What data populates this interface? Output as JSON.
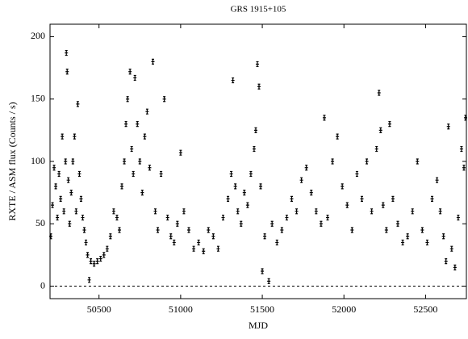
{
  "chart_data": {
    "type": "scatter",
    "title": "GRS 1915+105",
    "x_label": "MJD",
    "y_label": "RXTE / ASM flux   (Counts / s)",
    "xlim": [
      50200,
      52750
    ],
    "xticks": [
      50500,
      51000,
      51500,
      52000,
      52500
    ],
    "ylim": [
      -10,
      210
    ],
    "yticks": [
      0,
      50,
      100,
      150,
      200
    ],
    "color": "#000000",
    "x": [
      50205,
      50215,
      50225,
      50235,
      50245,
      50255,
      50265,
      50275,
      50285,
      50295,
      50300,
      50305,
      50312,
      50320,
      50330,
      50340,
      50350,
      50360,
      50370,
      50380,
      50390,
      50400,
      50410,
      50420,
      50430,
      50440,
      50450,
      50470,
      50490,
      50510,
      50530,
      50550,
      50570,
      50590,
      50610,
      50625,
      50640,
      50655,
      50665,
      50675,
      50690,
      50700,
      50710,
      50720,
      50735,
      50750,
      50765,
      50780,
      50795,
      50810,
      50830,
      50845,
      50860,
      50880,
      50900,
      50920,
      50940,
      50960,
      50980,
      51000,
      51020,
      51050,
      51080,
      51110,
      51140,
      51170,
      51200,
      51230,
      51260,
      51290,
      51310,
      51320,
      51335,
      51350,
      51370,
      51390,
      51410,
      51430,
      51450,
      51460,
      51470,
      51480,
      51490,
      51500,
      51515,
      51540,
      51560,
      51590,
      51620,
      51650,
      51680,
      51710,
      51740,
      51770,
      51800,
      51830,
      51860,
      51880,
      51900,
      51930,
      51960,
      51990,
      52020,
      52050,
      52080,
      52110,
      52140,
      52170,
      52200,
      52215,
      52225,
      52240,
      52260,
      52280,
      52300,
      52330,
      52360,
      52390,
      52420,
      52450,
      52480,
      52510,
      52540,
      52570,
      52590,
      52610,
      52625,
      52640,
      52660,
      52680,
      52700,
      52720,
      52735,
      52745
    ],
    "values": [
      40,
      65,
      95,
      80,
      55,
      90,
      70,
      120,
      60,
      100,
      187,
      172,
      85,
      50,
      75,
      100,
      120,
      60,
      146,
      90,
      70,
      55,
      45,
      35,
      25,
      5,
      20,
      18,
      20,
      22,
      25,
      30,
      40,
      60,
      55,
      45,
      80,
      100,
      130,
      150,
      172,
      110,
      90,
      167,
      130,
      100,
      75,
      120,
      140,
      95,
      180,
      60,
      45,
      90,
      150,
      55,
      40,
      35,
      50,
      107,
      60,
      45,
      30,
      35,
      28,
      45,
      40,
      30,
      55,
      70,
      90,
      165,
      80,
      60,
      50,
      75,
      65,
      90,
      110,
      125,
      178,
      160,
      80,
      12,
      40,
      4,
      50,
      35,
      45,
      55,
      70,
      60,
      85,
      95,
      75,
      60,
      50,
      135,
      55,
      100,
      120,
      80,
      65,
      45,
      90,
      70,
      100,
      60,
      110,
      155,
      125,
      65,
      45,
      130,
      70,
      50,
      35,
      40,
      60,
      100,
      45,
      35,
      70,
      85,
      60,
      40,
      20,
      128,
      30,
      15,
      55,
      110,
      95,
      135
    ]
  }
}
